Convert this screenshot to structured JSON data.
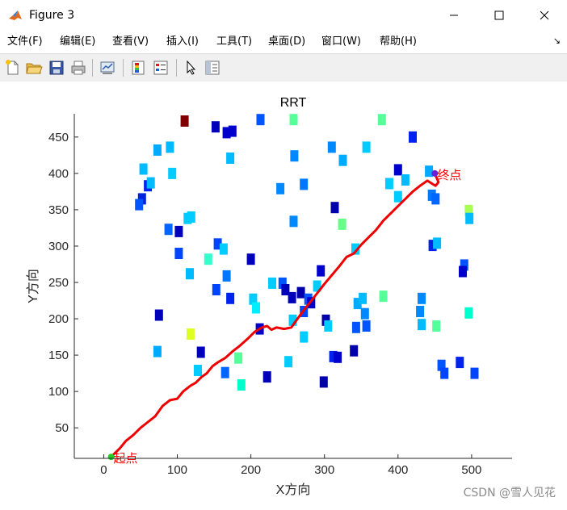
{
  "window": {
    "title": "Figure 3",
    "minimize_icon": "minimize-icon",
    "maximize_icon": "maximize-icon",
    "close_icon": "close-icon"
  },
  "menu": {
    "items": [
      "文件(F)",
      "编辑(E)",
      "查看(V)",
      "插入(I)",
      "工具(T)",
      "桌面(D)",
      "窗口(W)",
      "帮助(H)"
    ]
  },
  "toolbar": {
    "icons": [
      "new-figure-icon",
      "open-file-icon",
      "save-icon",
      "print-icon",
      "link-plot-icon",
      "insert-colorbar-icon",
      "insert-legend-icon",
      "edit-plot-arrow-icon",
      "property-inspector-icon"
    ]
  },
  "watermark": "CSDN @雪人见花",
  "chart_data": {
    "type": "scatter",
    "title": "RRT",
    "xlabel": "X方向",
    "ylabel": "Y方向",
    "xlim": [
      -40,
      555
    ],
    "ylim": [
      8,
      482
    ],
    "xticks": [
      0,
      100,
      200,
      300,
      400,
      500
    ],
    "yticks": [
      50,
      100,
      150,
      200,
      250,
      300,
      350,
      400,
      450
    ],
    "grid": false,
    "annotations": [
      {
        "text": "起点",
        "x": 10,
        "y": 10,
        "color": "#ff0000"
      },
      {
        "text": "终点",
        "x": 450,
        "y": 400,
        "color": "#ff0000"
      }
    ],
    "start": {
      "x": 10,
      "y": 10,
      "color": "#22cc22"
    },
    "goal": {
      "x": 450,
      "y": 400,
      "color": "#6a1fd6"
    },
    "path": {
      "color": "#ee0000",
      "points": [
        [
          10,
          10
        ],
        [
          22,
          22
        ],
        [
          30,
          32
        ],
        [
          40,
          40
        ],
        [
          50,
          50
        ],
        [
          60,
          58
        ],
        [
          70,
          66
        ],
        [
          80,
          80
        ],
        [
          90,
          88
        ],
        [
          100,
          90
        ],
        [
          108,
          100
        ],
        [
          118,
          108
        ],
        [
          125,
          112
        ],
        [
          133,
          120
        ],
        [
          140,
          125
        ],
        [
          148,
          135
        ],
        [
          155,
          140
        ],
        [
          165,
          146
        ],
        [
          175,
          155
        ],
        [
          185,
          163
        ],
        [
          195,
          172
        ],
        [
          205,
          182
        ],
        [
          215,
          188
        ],
        [
          222,
          190
        ],
        [
          228,
          185
        ],
        [
          235,
          188
        ],
        [
          245,
          186
        ],
        [
          255,
          188
        ],
        [
          262,
          198
        ],
        [
          272,
          212
        ],
        [
          280,
          222
        ],
        [
          290,
          235
        ],
        [
          300,
          248
        ],
        [
          310,
          260
        ],
        [
          320,
          272
        ],
        [
          330,
          285
        ],
        [
          340,
          290
        ],
        [
          350,
          302
        ],
        [
          360,
          312
        ],
        [
          370,
          322
        ],
        [
          380,
          335
        ],
        [
          390,
          345
        ],
        [
          400,
          355
        ],
        [
          410,
          365
        ],
        [
          420,
          375
        ],
        [
          430,
          383
        ],
        [
          440,
          390
        ],
        [
          446,
          386
        ],
        [
          451,
          383
        ],
        [
          455,
          388
        ],
        [
          452,
          395
        ],
        [
          450,
          400
        ]
      ]
    },
    "obstacles": [
      {
        "x": 110,
        "y": 472,
        "c": "#7f0000"
      },
      {
        "x": 152,
        "y": 464,
        "c": "#0000bb"
      },
      {
        "x": 167,
        "y": 456,
        "c": "#0000cc"
      },
      {
        "x": 175,
        "y": 458,
        "c": "#0000cc"
      },
      {
        "x": 213,
        "y": 474,
        "c": "#0055ff"
      },
      {
        "x": 258,
        "y": 474,
        "c": "#55ff9a"
      },
      {
        "x": 378,
        "y": 474,
        "c": "#55ff9a"
      },
      {
        "x": 420,
        "y": 450,
        "c": "#0022ee"
      },
      {
        "x": 73,
        "y": 432,
        "c": "#00aaff"
      },
      {
        "x": 90,
        "y": 436,
        "c": "#00bbff"
      },
      {
        "x": 172,
        "y": 421,
        "c": "#00bbff"
      },
      {
        "x": 259,
        "y": 424,
        "c": "#0088ff"
      },
      {
        "x": 310,
        "y": 436,
        "c": "#0088ff"
      },
      {
        "x": 325,
        "y": 418,
        "c": "#00aaff"
      },
      {
        "x": 357,
        "y": 436,
        "c": "#00ccff"
      },
      {
        "x": 400,
        "y": 405,
        "c": "#0000cc"
      },
      {
        "x": 410,
        "y": 391,
        "c": "#00bbff"
      },
      {
        "x": 442,
        "y": 403,
        "c": "#00aaff"
      },
      {
        "x": 54,
        "y": 406,
        "c": "#00bbff"
      },
      {
        "x": 93,
        "y": 400,
        "c": "#00ccff"
      },
      {
        "x": 60,
        "y": 383,
        "c": "#0022ee"
      },
      {
        "x": 64,
        "y": 387,
        "c": "#00bbff"
      },
      {
        "x": 240,
        "y": 379,
        "c": "#0088ff"
      },
      {
        "x": 272,
        "y": 385,
        "c": "#0077ff"
      },
      {
        "x": 388,
        "y": 386,
        "c": "#00ccff"
      },
      {
        "x": 400,
        "y": 368,
        "c": "#00ccff"
      },
      {
        "x": 446,
        "y": 370,
        "c": "#0077ff"
      },
      {
        "x": 451,
        "y": 365,
        "c": "#0066ff"
      },
      {
        "x": 52,
        "y": 365,
        "c": "#0022dd"
      },
      {
        "x": 48,
        "y": 357,
        "c": "#0055ff"
      },
      {
        "x": 314,
        "y": 353,
        "c": "#0000aa"
      },
      {
        "x": 496,
        "y": 349,
        "c": "#aaff55"
      },
      {
        "x": 497,
        "y": 338,
        "c": "#00bbff"
      },
      {
        "x": 114,
        "y": 338,
        "c": "#00ccff"
      },
      {
        "x": 119,
        "y": 340,
        "c": "#00ccff"
      },
      {
        "x": 258,
        "y": 334,
        "c": "#0088ff"
      },
      {
        "x": 324,
        "y": 330,
        "c": "#66ff88"
      },
      {
        "x": 88,
        "y": 323,
        "c": "#0066ff"
      },
      {
        "x": 102,
        "y": 320,
        "c": "#0000bb"
      },
      {
        "x": 155,
        "y": 303,
        "c": "#0044ff"
      },
      {
        "x": 163,
        "y": 296,
        "c": "#00ccff"
      },
      {
        "x": 342,
        "y": 296,
        "c": "#00ccff"
      },
      {
        "x": 447,
        "y": 301,
        "c": "#0022ee"
      },
      {
        "x": 453,
        "y": 304,
        "c": "#00bbff"
      },
      {
        "x": 102,
        "y": 290,
        "c": "#0044ff"
      },
      {
        "x": 142,
        "y": 282,
        "c": "#33ffcc"
      },
      {
        "x": 200,
        "y": 282,
        "c": "#0000bb"
      },
      {
        "x": 490,
        "y": 274,
        "c": "#0055ff"
      },
      {
        "x": 488,
        "y": 265,
        "c": "#0000cc"
      },
      {
        "x": 295,
        "y": 266,
        "c": "#0000cc"
      },
      {
        "x": 117,
        "y": 262,
        "c": "#00bbff"
      },
      {
        "x": 167,
        "y": 259,
        "c": "#0077ff"
      },
      {
        "x": 229,
        "y": 249,
        "c": "#00ccff"
      },
      {
        "x": 243,
        "y": 249,
        "c": "#0055ff"
      },
      {
        "x": 247,
        "y": 240,
        "c": "#0000bb"
      },
      {
        "x": 290,
        "y": 245,
        "c": "#00ccff"
      },
      {
        "x": 153,
        "y": 240,
        "c": "#0044ff"
      },
      {
        "x": 256,
        "y": 229,
        "c": "#0000bb"
      },
      {
        "x": 268,
        "y": 236,
        "c": "#0000aa"
      },
      {
        "x": 278,
        "y": 227,
        "c": "#0055ff"
      },
      {
        "x": 282,
        "y": 222,
        "c": "#0000cc"
      },
      {
        "x": 172,
        "y": 228,
        "c": "#0022ee"
      },
      {
        "x": 203,
        "y": 227,
        "c": "#00ccff"
      },
      {
        "x": 207,
        "y": 215,
        "c": "#00eeff"
      },
      {
        "x": 345,
        "y": 221,
        "c": "#00aaff"
      },
      {
        "x": 352,
        "y": 228,
        "c": "#00bbff"
      },
      {
        "x": 380,
        "y": 231,
        "c": "#55ff9a"
      },
      {
        "x": 432,
        "y": 228,
        "c": "#0088ff"
      },
      {
        "x": 430,
        "y": 210,
        "c": "#0088ff"
      },
      {
        "x": 272,
        "y": 210,
        "c": "#0044ff"
      },
      {
        "x": 75,
        "y": 205,
        "c": "#0000bb"
      },
      {
        "x": 257,
        "y": 198,
        "c": "#00ccff"
      },
      {
        "x": 302,
        "y": 198,
        "c": "#0000aa"
      },
      {
        "x": 305,
        "y": 190,
        "c": "#00ccff"
      },
      {
        "x": 343,
        "y": 188,
        "c": "#0055ff"
      },
      {
        "x": 357,
        "y": 190,
        "c": "#0055ff"
      },
      {
        "x": 355,
        "y": 207,
        "c": "#0088ff"
      },
      {
        "x": 432,
        "y": 192,
        "c": "#00bbff"
      },
      {
        "x": 452,
        "y": 190,
        "c": "#55ff9a"
      },
      {
        "x": 496,
        "y": 208,
        "c": "#00ffcc"
      },
      {
        "x": 212,
        "y": 186,
        "c": "#0000cc"
      },
      {
        "x": 118,
        "y": 179,
        "c": "#ddff22"
      },
      {
        "x": 272,
        "y": 175,
        "c": "#00ccff"
      },
      {
        "x": 73,
        "y": 155,
        "c": "#00aaff"
      },
      {
        "x": 132,
        "y": 154,
        "c": "#0000bb"
      },
      {
        "x": 183,
        "y": 146,
        "c": "#55ff9a"
      },
      {
        "x": 251,
        "y": 141,
        "c": "#00ccff"
      },
      {
        "x": 312,
        "y": 148,
        "c": "#0022ee"
      },
      {
        "x": 318,
        "y": 147,
        "c": "#0000cc"
      },
      {
        "x": 340,
        "y": 156,
        "c": "#0000aa"
      },
      {
        "x": 128,
        "y": 129,
        "c": "#00ccff"
      },
      {
        "x": 165,
        "y": 126,
        "c": "#0066ff"
      },
      {
        "x": 222,
        "y": 120,
        "c": "#0000bb"
      },
      {
        "x": 299,
        "y": 113,
        "c": "#0000aa"
      },
      {
        "x": 459,
        "y": 136,
        "c": "#0055ff"
      },
      {
        "x": 463,
        "y": 125,
        "c": "#0044ff"
      },
      {
        "x": 484,
        "y": 140,
        "c": "#0022ee"
      },
      {
        "x": 504,
        "y": 125,
        "c": "#0044ff"
      },
      {
        "x": 187,
        "y": 109,
        "c": "#00ffcc"
      }
    ]
  }
}
